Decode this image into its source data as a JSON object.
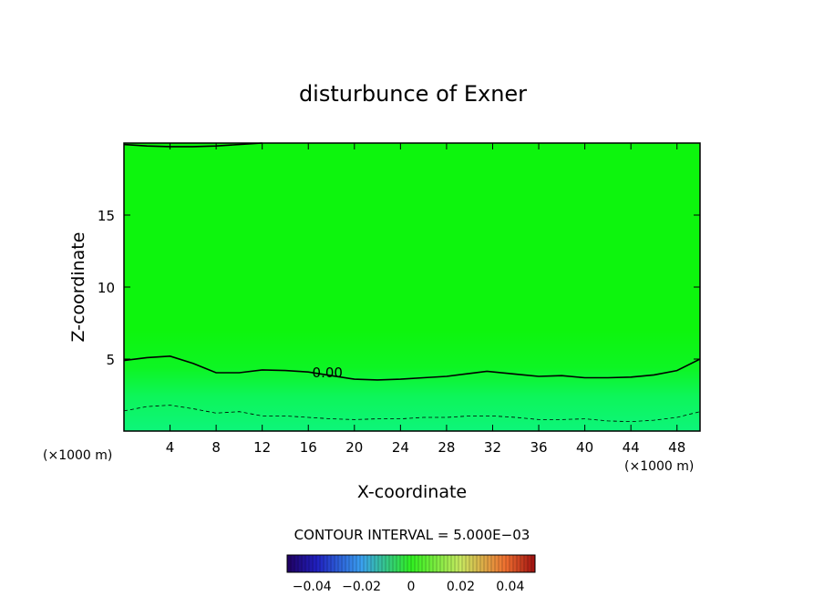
{
  "chart_data": {
    "type": "contour",
    "title": "disturbunce of Exner",
    "xlabel": "X-coordinate",
    "ylabel": "Z-coordinate",
    "x_unit_note_left": "(×1000 m)",
    "x_unit_note_right": "(×1000 m)",
    "xlim": [
      0,
      50
    ],
    "ylim": [
      0,
      20
    ],
    "x_ticks": [
      "4",
      "8",
      "12",
      "16",
      "20",
      "24",
      "28",
      "32",
      "36",
      "40",
      "44",
      "48"
    ],
    "y_ticks": [
      "5",
      "10",
      "15"
    ],
    "contour_interval_text": "CONTOUR INTERVAL = 5.000E−03",
    "colorbar_ticks": [
      "−0.04",
      "−0.02",
      "0",
      "0.02",
      "0.04"
    ],
    "colorbar_range": [
      -0.05,
      0.05
    ],
    "background_color": "#0df50d",
    "contours": [
      {
        "level": 0.0,
        "label": "0.00",
        "style": "solid",
        "points": [
          [
            0,
            4.9
          ],
          [
            2,
            5.1
          ],
          [
            4,
            5.2
          ],
          [
            6,
            4.7
          ],
          [
            8,
            4.05
          ],
          [
            10,
            4.05
          ],
          [
            12,
            4.25
          ],
          [
            14,
            4.2
          ],
          [
            16,
            4.1
          ],
          [
            18,
            3.85
          ],
          [
            20,
            3.6
          ],
          [
            22,
            3.55
          ],
          [
            24,
            3.6
          ],
          [
            26,
            3.7
          ],
          [
            28,
            3.8
          ],
          [
            30,
            4.0
          ],
          [
            31.5,
            4.15
          ],
          [
            34,
            3.95
          ],
          [
            36,
            3.8
          ],
          [
            38,
            3.85
          ],
          [
            40,
            3.7
          ],
          [
            42,
            3.7
          ],
          [
            44,
            3.75
          ],
          [
            46,
            3.9
          ],
          [
            48,
            4.2
          ],
          [
            50,
            5.0
          ]
        ]
      },
      {
        "level": -0.005,
        "label": "",
        "style": "dashed",
        "points": [
          [
            0,
            1.4
          ],
          [
            2,
            1.7
          ],
          [
            4,
            1.8
          ],
          [
            6,
            1.55
          ],
          [
            8,
            1.25
          ],
          [
            10,
            1.35
          ],
          [
            12,
            1.05
          ],
          [
            14,
            1.05
          ],
          [
            16,
            0.95
          ],
          [
            18,
            0.85
          ],
          [
            20,
            0.8
          ],
          [
            22,
            0.85
          ],
          [
            24,
            0.85
          ],
          [
            26,
            0.95
          ],
          [
            28,
            0.95
          ],
          [
            30,
            1.05
          ],
          [
            32,
            1.05
          ],
          [
            34,
            0.95
          ],
          [
            36,
            0.8
          ],
          [
            38,
            0.8
          ],
          [
            40,
            0.85
          ],
          [
            42,
            0.7
          ],
          [
            44,
            0.65
          ],
          [
            46,
            0.75
          ],
          [
            48,
            0.95
          ],
          [
            50,
            1.35
          ]
        ]
      },
      {
        "level": 0.0,
        "label": "",
        "style": "solid",
        "points": [
          [
            0,
            19.9
          ],
          [
            2,
            19.8
          ],
          [
            4,
            19.75
          ],
          [
            6,
            19.75
          ],
          [
            8,
            19.8
          ],
          [
            10,
            19.9
          ],
          [
            12,
            20.0
          ]
        ]
      }
    ]
  }
}
